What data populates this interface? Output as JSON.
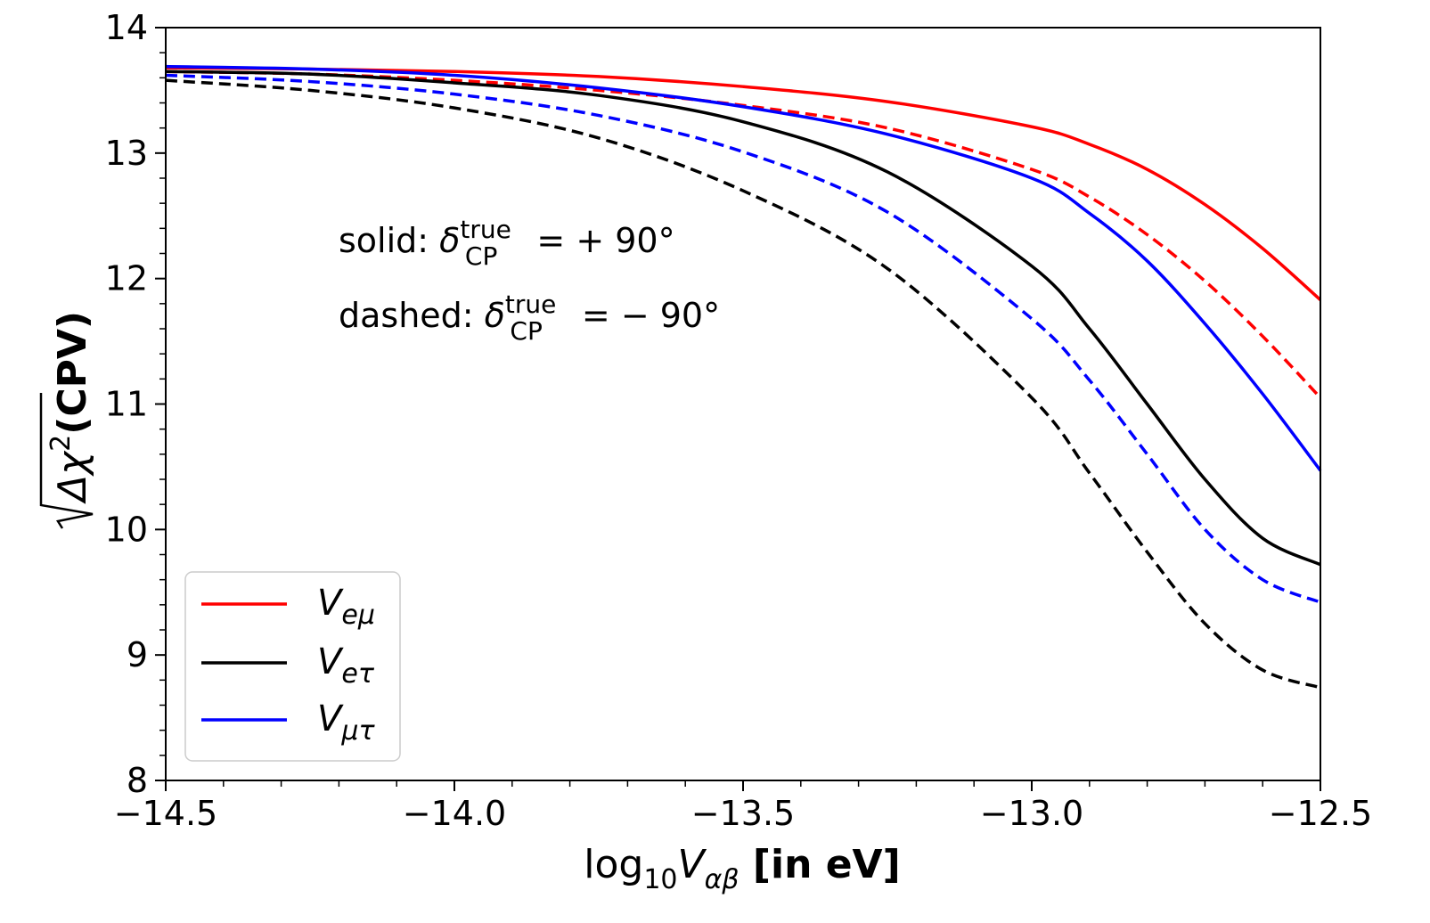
{
  "chart_data": {
    "type": "line",
    "xlim": [
      -14.5,
      -12.5
    ],
    "ylim": [
      8,
      14
    ],
    "xticks": [
      -14.5,
      -14.0,
      -13.5,
      -13.0,
      -12.5
    ],
    "xtick_labels": [
      "−14.5",
      "−14.0",
      "−13.5",
      "−13.0",
      "−12.5"
    ],
    "yticks": [
      8,
      9,
      10,
      11,
      12,
      13,
      14
    ],
    "ytick_labels": [
      "8",
      "9",
      "10",
      "11",
      "12",
      "13",
      "14"
    ],
    "xlabel": {
      "prefix": "log",
      "sub": "10",
      "var": "V",
      "var_sub": "αβ",
      "suffix": " [in eV]"
    },
    "ylabel": {
      "sqrt_body": "Δχ",
      "sup": "2",
      "suffix": "(CPV)"
    },
    "annotations": [
      {
        "lead": "solid: ",
        "sym": "δ",
        "sub": "CP",
        "sup": "true",
        "tail": " = + 90°"
      },
      {
        "lead": "dashed: ",
        "sym": "δ",
        "sub": "CP",
        "sup": "true",
        "tail": " = − 90°"
      }
    ],
    "legend": {
      "placement": "lower-left",
      "entries": [
        {
          "label": "V",
          "sub": "eμ",
          "color": "#ff0000"
        },
        {
          "label": "V",
          "sub": "eτ",
          "color": "#000000"
        },
        {
          "label": "V",
          "sub": "μτ",
          "color": "#0000ff"
        }
      ]
    },
    "x": [
      -14.5,
      -14.25,
      -14.0,
      -13.75,
      -13.5,
      -13.25,
      -13.0,
      -12.9,
      -12.8,
      -12.7,
      -12.6,
      -12.5
    ],
    "series": [
      {
        "name": "Vₑμ solid",
        "color": "#ff0000",
        "dash": false,
        "values": [
          13.68,
          13.67,
          13.65,
          13.61,
          13.53,
          13.41,
          13.21,
          13.07,
          12.87,
          12.59,
          12.24,
          11.83
        ]
      },
      {
        "name": "Vₑμ dashed",
        "color": "#ff0000",
        "dash": true,
        "values": [
          13.65,
          13.63,
          13.58,
          13.5,
          13.38,
          13.2,
          12.87,
          12.65,
          12.35,
          11.98,
          11.54,
          11.05
        ]
      },
      {
        "name": "Vₑτ solid",
        "color": "#000000",
        "dash": false,
        "values": [
          13.65,
          13.63,
          13.56,
          13.46,
          13.25,
          12.85,
          12.1,
          11.6,
          11.0,
          10.4,
          9.93,
          9.72
        ]
      },
      {
        "name": "Vₑτ dashed",
        "color": "#000000",
        "dash": true,
        "values": [
          13.58,
          13.5,
          13.36,
          13.12,
          12.7,
          12.08,
          11.05,
          10.45,
          9.82,
          9.25,
          8.88,
          8.74
        ]
      },
      {
        "name": "Vμτ solid",
        "color": "#0000ff",
        "dash": false,
        "values": [
          13.69,
          13.67,
          13.62,
          13.52,
          13.37,
          13.15,
          12.8,
          12.52,
          12.14,
          11.64,
          11.08,
          10.47
        ]
      },
      {
        "name": "Vμτ dashed",
        "color": "#0000ff",
        "dash": true,
        "values": [
          13.62,
          13.57,
          13.47,
          13.3,
          13.01,
          12.53,
          11.68,
          11.19,
          10.6,
          10.0,
          9.6,
          9.42
        ]
      }
    ]
  }
}
